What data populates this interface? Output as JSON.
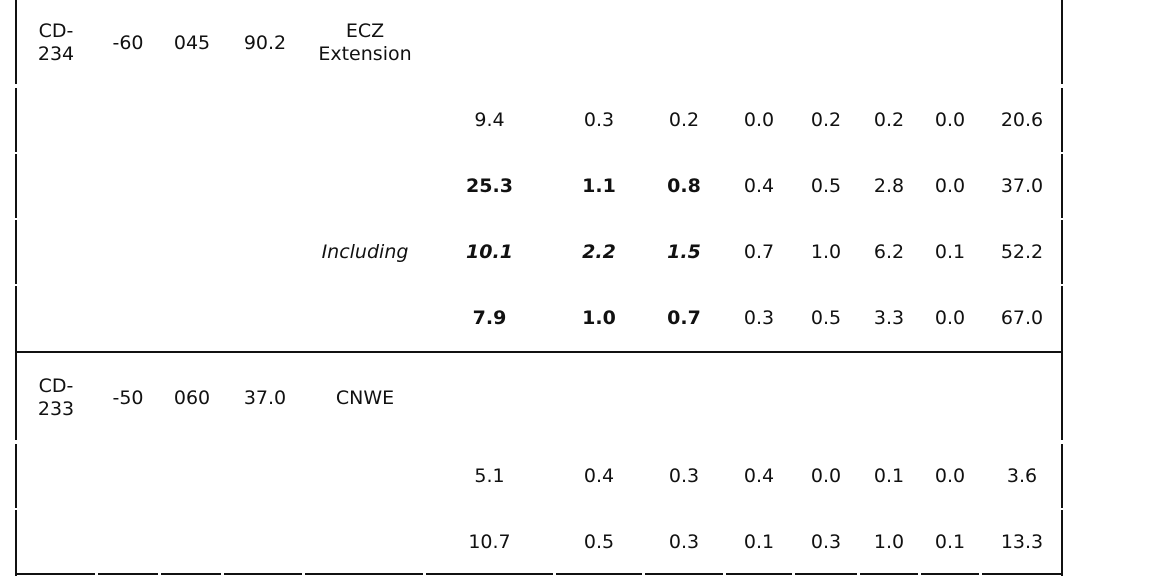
{
  "sections": [
    {
      "hole": "CD-\n234",
      "hole_line1": "CD-",
      "hole_line2": "234",
      "dip": "-60",
      "azimuth": "045",
      "length": "90.2",
      "target_line1": "ECZ",
      "target_line2": "Extension",
      "rows": [
        {
          "label": "",
          "v": [
            "9.4",
            "0.3",
            "0.2",
            "0.0",
            "0.2",
            "0.2",
            "0.0",
            "20.6"
          ],
          "style": [
            "",
            "",
            "",
            "",
            "",
            "",
            "",
            ""
          ]
        },
        {
          "label": "",
          "v": [
            "25.3",
            "1.1",
            "0.8",
            "0.4",
            "0.5",
            "2.8",
            "0.0",
            "37.0"
          ],
          "style": [
            "b",
            "b",
            "b",
            "",
            "",
            "",
            "",
            ""
          ]
        },
        {
          "label": "Including",
          "v": [
            "10.1",
            "2.2",
            "1.5",
            "0.7",
            "1.0",
            "6.2",
            "0.1",
            "52.2"
          ],
          "style": [
            "bi",
            "bi",
            "bi",
            "",
            "",
            "",
            "",
            ""
          ]
        },
        {
          "label": "",
          "v": [
            "7.9",
            "1.0",
            "0.7",
            "0.3",
            "0.5",
            "3.3",
            "0.0",
            "67.0"
          ],
          "style": [
            "b",
            "b",
            "b",
            "",
            "",
            "",
            "",
            ""
          ]
        }
      ]
    },
    {
      "hole_line1": "CD-",
      "hole_line2": "233",
      "dip": "-50",
      "azimuth": "060",
      "length": "37.0",
      "target_line1": "CNWE",
      "target_line2": "",
      "rows": [
        {
          "label": "",
          "v": [
            "5.1",
            "0.4",
            "0.3",
            "0.4",
            "0.0",
            "0.1",
            "0.0",
            "3.6"
          ],
          "style": [
            "",
            "",
            "",
            "",
            "",
            "",
            "",
            ""
          ]
        },
        {
          "label": "",
          "v": [
            "10.7",
            "0.5",
            "0.3",
            "0.1",
            "0.3",
            "1.0",
            "0.1",
            "13.3"
          ],
          "style": [
            "",
            "",
            "",
            "",
            "",
            "",
            "",
            ""
          ]
        }
      ]
    }
  ]
}
